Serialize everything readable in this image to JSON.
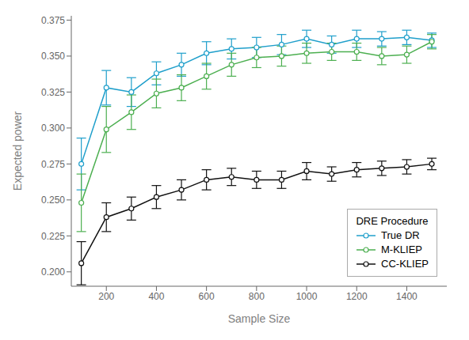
{
  "chart_data": {
    "type": "line",
    "xlabel": "Sample Size",
    "ylabel": "Expected power",
    "legend_title": "DRE Procedure",
    "legend": "lower right",
    "grid": false,
    "marker": "circle",
    "xlim": [
      60,
      1560
    ],
    "ylim": [
      0.19,
      0.378
    ],
    "xticks": [
      200,
      400,
      600,
      800,
      1000,
      1200,
      1400
    ],
    "yticks": [
      {
        "value": 0.2,
        "label": "0.200"
      },
      0.225,
      {
        "value": 0.25,
        "label": "0.250"
      },
      0.275,
      {
        "value": 0.3,
        "label": "0.300"
      },
      0.325,
      {
        "value": 0.35,
        "label": "0.350"
      },
      0.375
    ],
    "x": [
      100,
      200,
      300,
      400,
      500,
      600,
      700,
      800,
      900,
      1000,
      1100,
      1200,
      1300,
      1400,
      1500
    ],
    "series": [
      {
        "name": "True DR",
        "color": "#1f9fcb",
        "values": [
          0.275,
          0.328,
          0.325,
          0.338,
          0.344,
          0.352,
          0.355,
          0.356,
          0.358,
          0.362,
          0.358,
          0.362,
          0.362,
          0.363,
          0.361
        ],
        "yerr": [
          0.018,
          0.012,
          0.01,
          0.008,
          0.008,
          0.008,
          0.007,
          0.007,
          0.007,
          0.006,
          0.006,
          0.006,
          0.005,
          0.005,
          0.005
        ]
      },
      {
        "name": "M-KLIEP",
        "color": "#4caf50",
        "values": [
          0.248,
          0.299,
          0.311,
          0.324,
          0.328,
          0.336,
          0.344,
          0.349,
          0.35,
          0.352,
          0.353,
          0.353,
          0.35,
          0.351,
          0.36
        ],
        "yerr": [
          0.02,
          0.016,
          0.012,
          0.01,
          0.009,
          0.009,
          0.008,
          0.007,
          0.007,
          0.007,
          0.006,
          0.006,
          0.006,
          0.006,
          0.005
        ]
      },
      {
        "name": "CC-KLIEP",
        "color": "#111111",
        "values": [
          0.206,
          0.238,
          0.244,
          0.252,
          0.257,
          0.264,
          0.266,
          0.264,
          0.264,
          0.27,
          0.268,
          0.271,
          0.272,
          0.273,
          0.275
        ],
        "yerr": [
          0.015,
          0.01,
          0.008,
          0.008,
          0.007,
          0.007,
          0.006,
          0.006,
          0.006,
          0.006,
          0.005,
          0.005,
          0.005,
          0.005,
          0.004
        ]
      }
    ]
  }
}
